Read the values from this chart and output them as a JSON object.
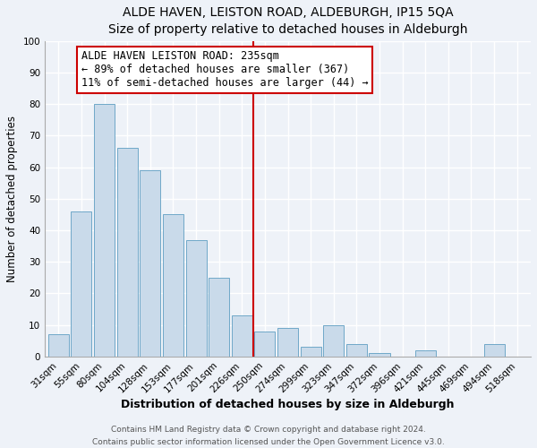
{
  "title": "ALDE HAVEN, LEISTON ROAD, ALDEBURGH, IP15 5QA",
  "subtitle": "Size of property relative to detached houses in Aldeburgh",
  "xlabel": "Distribution of detached houses by size in Aldeburgh",
  "ylabel": "Number of detached properties",
  "bar_labels": [
    "31sqm",
    "55sqm",
    "80sqm",
    "104sqm",
    "128sqm",
    "153sqm",
    "177sqm",
    "201sqm",
    "226sqm",
    "250sqm",
    "274sqm",
    "299sqm",
    "323sqm",
    "347sqm",
    "372sqm",
    "396sqm",
    "421sqm",
    "445sqm",
    "469sqm",
    "494sqm",
    "518sqm"
  ],
  "bar_values": [
    7,
    46,
    80,
    66,
    59,
    45,
    37,
    25,
    13,
    8,
    9,
    3,
    10,
    4,
    1,
    0,
    2,
    0,
    0,
    4,
    0
  ],
  "bar_color": "#c9daea",
  "bar_edge_color": "#6fa8c8",
  "vline_x_index": 9,
  "vline_color": "#cc0000",
  "annotation_text": "ALDE HAVEN LEISTON ROAD: 235sqm\n← 89% of detached houses are smaller (367)\n11% of semi-detached houses are larger (44) →",
  "annotation_box_color": "#ffffff",
  "annotation_box_edge_color": "#cc0000",
  "ylim": [
    0,
    100
  ],
  "yticks": [
    0,
    10,
    20,
    30,
    40,
    50,
    60,
    70,
    80,
    90,
    100
  ],
  "footer_line1": "Contains HM Land Registry data © Crown copyright and database right 2024.",
  "footer_line2": "Contains public sector information licensed under the Open Government Licence v3.0.",
  "title_fontsize": 10,
  "subtitle_fontsize": 9,
  "xlabel_fontsize": 9,
  "ylabel_fontsize": 8.5,
  "tick_fontsize": 7.5,
  "annotation_fontsize": 8.5,
  "footer_fontsize": 6.5,
  "bg_color": "#eef2f8"
}
